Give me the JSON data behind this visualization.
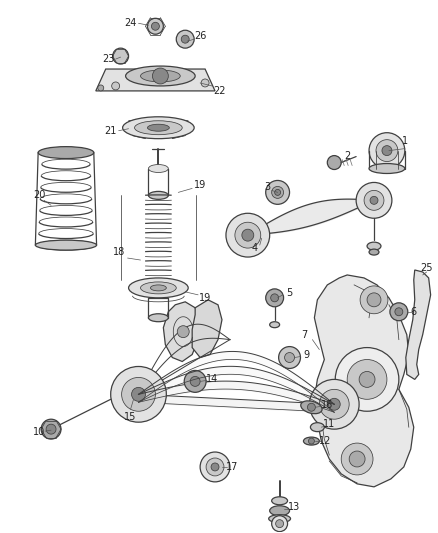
{
  "bg_color": "#ffffff",
  "line_color": "#404040",
  "label_color": "#222222",
  "fig_width": 4.38,
  "fig_height": 5.33,
  "dpi": 100,
  "lw": 0.9,
  "lw_thin": 0.55,
  "lw_thick": 1.4,
  "gray_fill": "#c8c8c8",
  "gray_dark": "#888888",
  "gray_mid": "#aaaaaa",
  "gray_light": "#e2e2e2",
  "white": "#ffffff",
  "label_fs": 7.0
}
